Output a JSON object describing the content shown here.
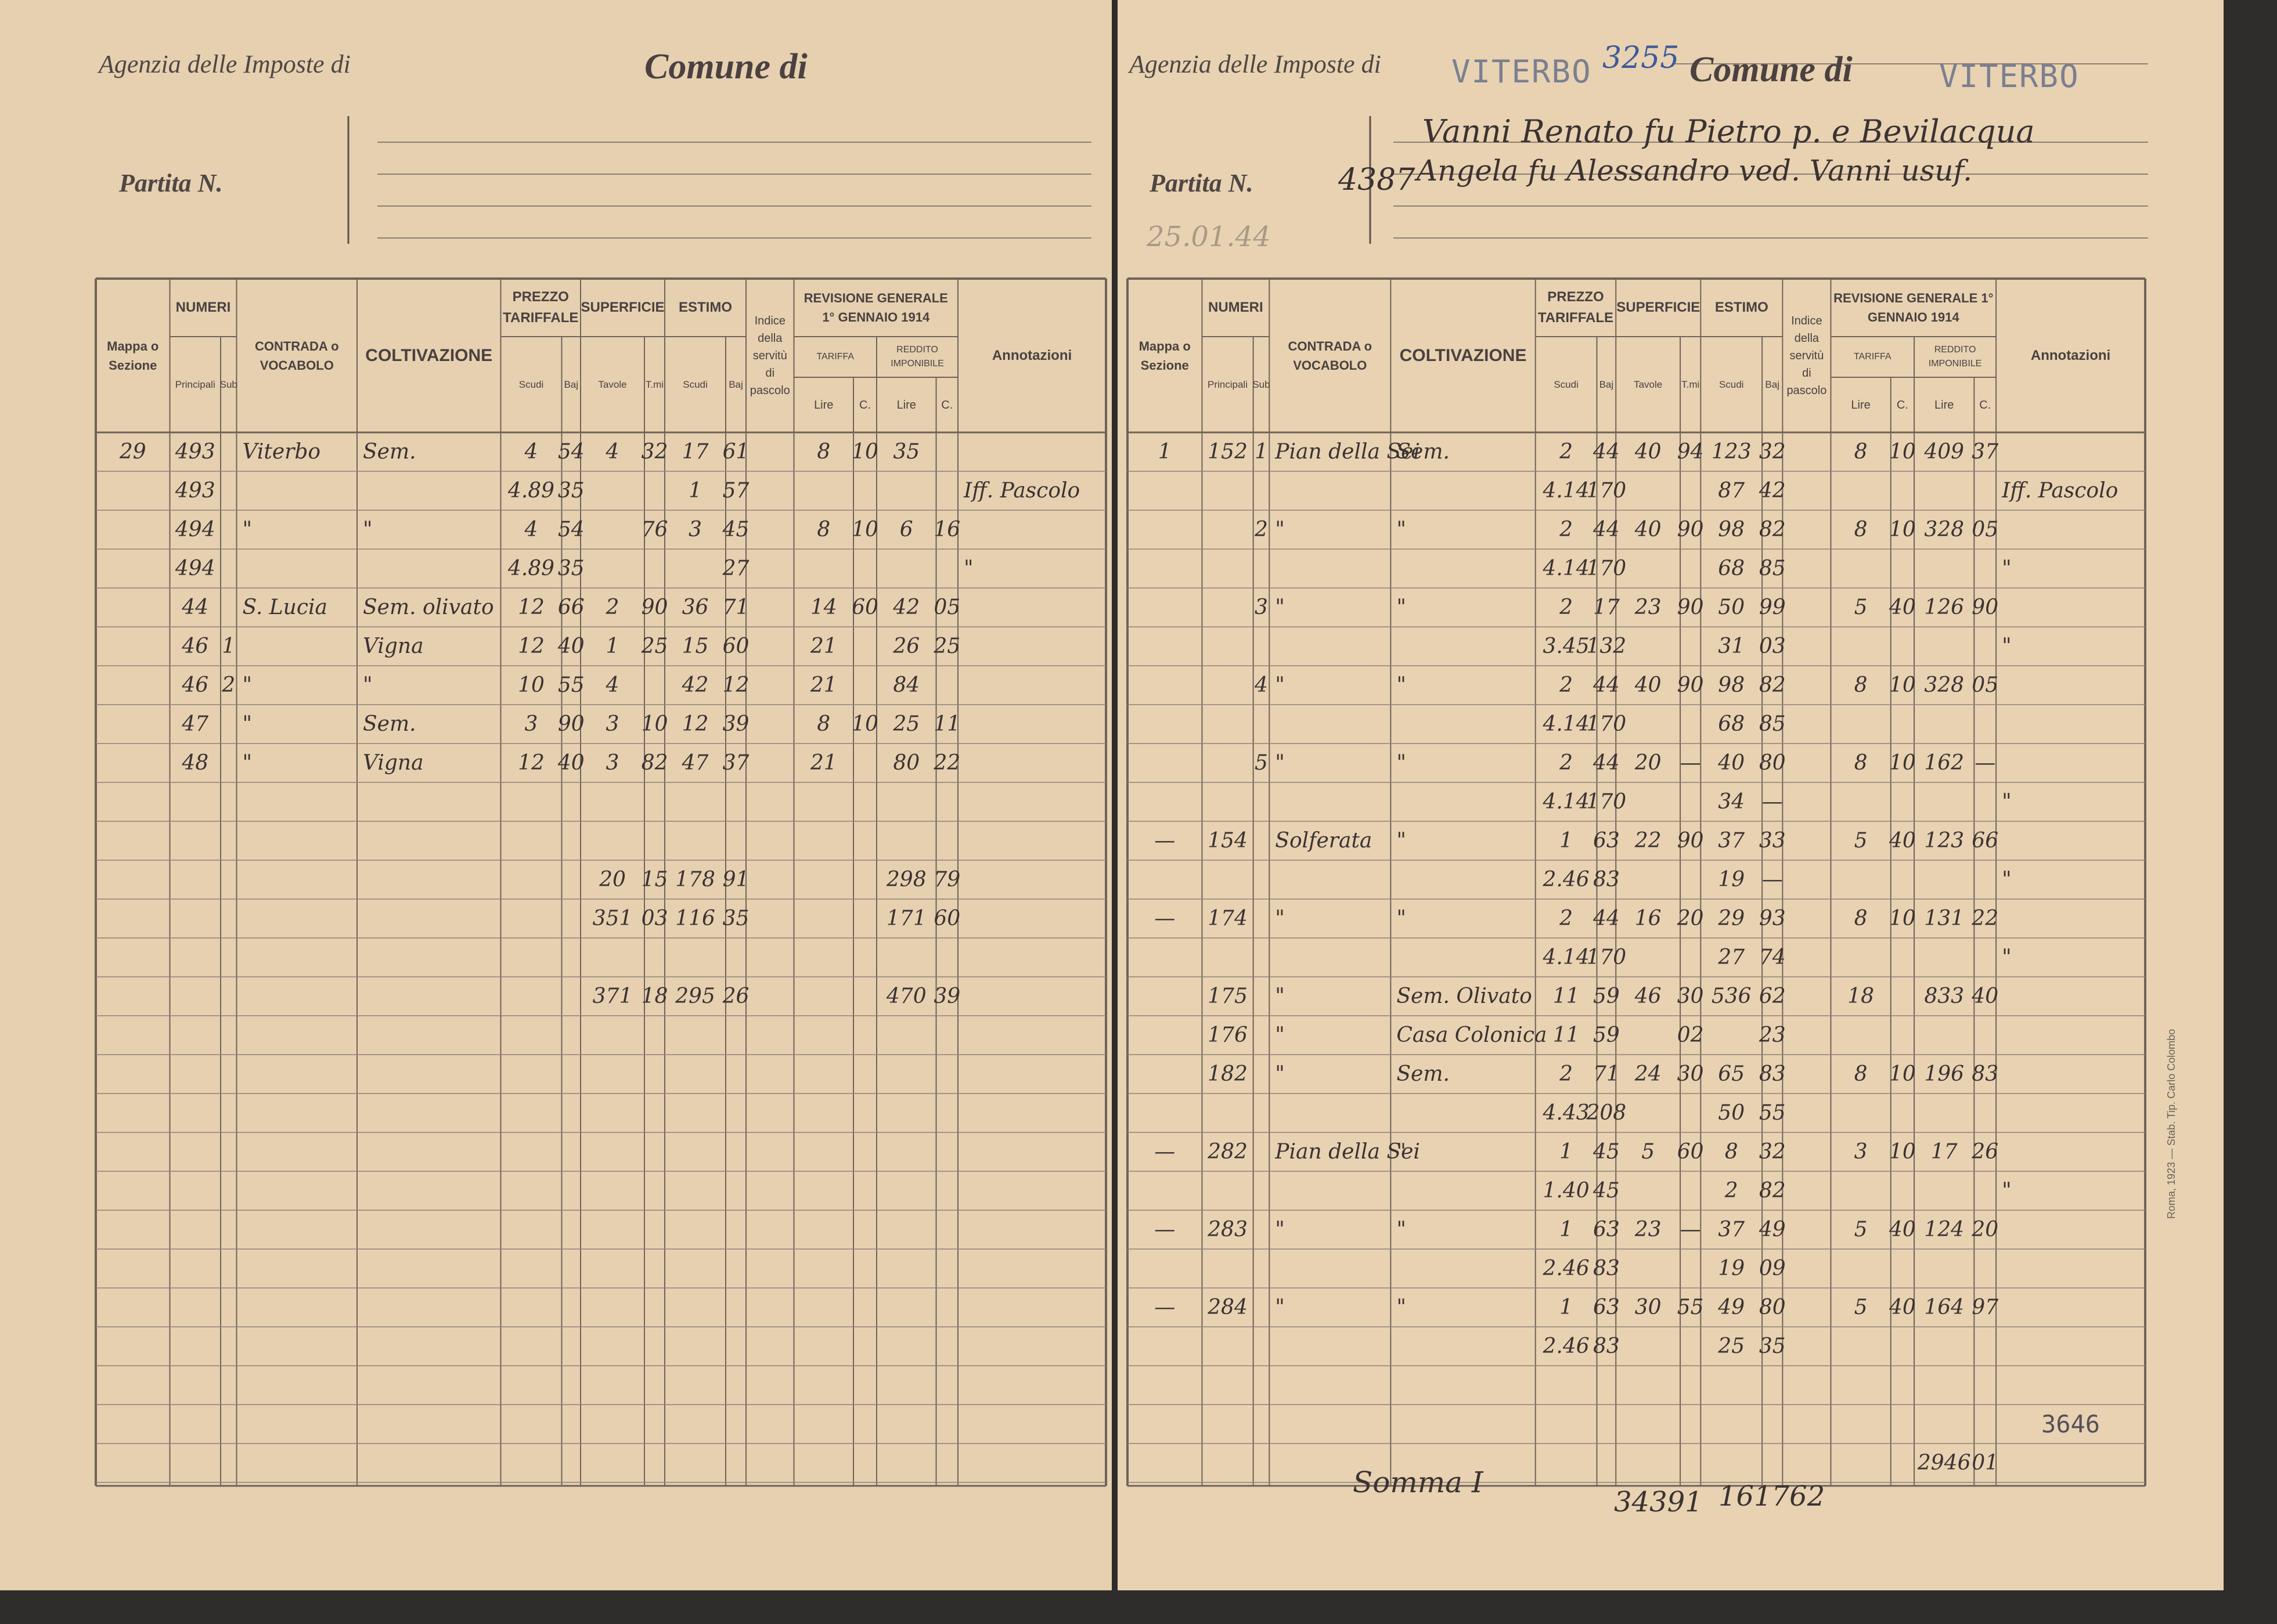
{
  "left_page": {
    "header": {
      "agency_label": "Agenzia delle Imposte di",
      "comune_label": "Comune di",
      "partita_label": "Partita N."
    },
    "table": {
      "headers": [
        "Mappa o Sezione",
        "NUMERI",
        "Principali",
        "Sub",
        "CONTRADA o VOCABOLO",
        "COLTIVAZIONE",
        "PREZZO TARIFFALE",
        "Scudi",
        "Baj",
        "SUPERFICIE",
        "Tavole",
        "T.mi",
        "ESTIMO",
        "Scudi",
        "Baj",
        "Indice della servitù di pascolo",
        "REVISIONE GENERALE 1° GENNAIO 1914",
        "TARIFFA",
        "REDDITO IMPONIBILE",
        "Lire",
        "C.",
        "Lire",
        "C.",
        "Annotazioni"
      ],
      "rows": [
        {
          "mappa": "29",
          "principali": "493",
          "contrada": "Viterbo",
          "coltivazione": "Sem.",
          "prezzo_scudi": "4",
          "prezzo_baj": "54",
          "superficie_tavole": "4",
          "superficie_tmi": "32",
          "estimo_scudi": "17",
          "estimo_baj": "61",
          "tariffa_lire": "8",
          "tariffa_c": "10",
          "reddito_lire": "35"
        },
        {
          "principali": "493",
          "prezzo_scudi": "4.89",
          "prezzo_baj": "35",
          "estimo_scudi": "1",
          "estimo_baj": "57",
          "annotazioni": "Iff. Pascolo"
        },
        {
          "principali": "494",
          "contrada": "\"",
          "coltivazione": "\"",
          "prezzo_scudi": "4",
          "prezzo_baj": "54",
          "superficie_tmi": "76",
          "estimo_scudi": "3",
          "estimo_baj": "45",
          "tariffa_lire": "8",
          "tariffa_c": "10",
          "reddito_lire": "6",
          "reddito_c": "16"
        },
        {
          "principali": "494",
          "prezzo_scudi": "4.89",
          "prezzo_baj": "35",
          "estimo_baj": "27",
          "annotazioni": "\""
        },
        {
          "principali": "44",
          "contrada": "S. Lucia",
          "coltivazione": "Sem. olivato",
          "prezzo_scudi": "12",
          "prezzo_baj": "66",
          "superficie_tavole": "2",
          "superficie_tmi": "90",
          "estimo_scudi": "36",
          "estimo_baj": "71",
          "tariffa_lire": "14",
          "tariffa_c": "60",
          "reddito_lire": "42",
          "reddito_c": "05"
        },
        {
          "principali": "46",
          "sub": "1",
          "coltivazione": "Vigna",
          "prezzo_scudi": "12",
          "prezzo_baj": "40",
          "superficie_tavole": "1",
          "superficie_tmi": "25",
          "estimo_scudi": "15",
          "estimo_baj": "60",
          "tariffa_lire": "21",
          "reddito_lire": "26",
          "reddito_c": "25"
        },
        {
          "principali": "46",
          "sub": "2",
          "contrada": "\"",
          "coltivazione": "\"",
          "prezzo_scudi": "10",
          "prezzo_baj": "55",
          "superficie_tavole": "4",
          "estimo_scudi": "42",
          "estimo_baj": "12",
          "tariffa_lire": "21",
          "reddito_lire": "84"
        },
        {
          "principali": "47",
          "contrada": "\"",
          "coltivazione": "Sem.",
          "prezzo_scudi": "3",
          "prezzo_baj": "90",
          "superficie_tavole": "3",
          "superficie_tmi": "10",
          "estimo_scudi": "12",
          "estimo_baj": "39",
          "tariffa_lire": "8",
          "tariffa_c": "10",
          "reddito_lire": "25",
          "reddito_c": "11"
        },
        {
          "principali": "48",
          "contrada": "\"",
          "coltivazione": "Vigna",
          "prezzo_scudi": "12",
          "prezzo_baj": "40",
          "superficie_tavole": "3",
          "superficie_tmi": "82",
          "estimo_scudi": "47",
          "estimo_baj": "37",
          "tariffa_lire": "21",
          "reddito_lire": "80",
          "reddito_c": "22"
        }
      ],
      "totals": [
        {
          "superficie_tavole": "20",
          "superficie_tmi": "15",
          "estimo_scudi": "178",
          "estimo_baj": "91",
          "reddito_lire": "298",
          "reddito_c": "79"
        },
        {
          "superficie_tavole": "351",
          "superficie_tmi": "03",
          "estimo_scudi": "116",
          "estimo_baj": "35",
          "reddito_lire": "171",
          "reddito_c": "60"
        },
        {
          "superficie_tavole": "371",
          "superficie_tmi": "18",
          "estimo_scudi": "295",
          "estimo_baj": "26",
          "reddito_lire": "470",
          "reddito_c": "39"
        }
      ]
    }
  },
  "right_page": {
    "header": {
      "agency_label": "Agenzia delle Imposte di",
      "agency_city": "VITERBO",
      "reference": "3255",
      "comune_label": "Comune di",
      "comune_name": "VITERBO",
      "partita_label": "Partita N.",
      "partita_number": "4387",
      "owner_lines": [
        "Vanni Renato fu Pietro p. e Bevilacqua",
        "Angela fu Alessandro ved. Vanni usuf."
      ],
      "date_stamp": "25.01.44"
    },
    "table": {
      "headers": [
        "Mappa o Sezione",
        "NUMERI",
        "Principali",
        "Sub",
        "CONTRADA o VOCABOLO",
        "COLTIVAZIONE",
        "PREZZO TARIFFALE",
        "Scudi",
        "Baj",
        "SUPERFICIE",
        "Tavole",
        "T.mi",
        "ESTIMO",
        "Scudi",
        "Baj",
        "Indice della servitù di pascolo",
        "REVISIONE GENERALE 1° GENNAIO 1914",
        "TARIFFA",
        "REDDITO IMPONIBILE",
        "Lire",
        "C.",
        "Lire",
        "C.",
        "Annotazioni"
      ],
      "rows": [
        {
          "mappa": "1",
          "principali": "152",
          "sub": "1",
          "contrada": "Pian della Sei",
          "coltivazione": "Sem.",
          "prezzo_scudi": "2",
          "prezzo_baj": "44",
          "superficie_tavole": "40",
          "superficie_tmi": "94",
          "estimo_scudi": "123",
          "estimo_baj": "32",
          "tariffa_lire": "8",
          "tariffa_c": "10",
          "reddito_lire": "409",
          "reddito_c": "37"
        },
        {
          "prezzo_scudi": "4.14",
          "prezzo_baj": "170",
          "estimo_scudi": "87",
          "estimo_baj": "42",
          "annotazioni": "Iff. Pascolo"
        },
        {
          "sub": "2",
          "contrada": "\"",
          "coltivazione": "\"",
          "prezzo_scudi": "2",
          "prezzo_baj": "44",
          "superficie_tavole": "40",
          "superficie_tmi": "90",
          "estimo_scudi": "98",
          "estimo_baj": "82",
          "tariffa_lire": "8",
          "tariffa_c": "10",
          "reddito_lire": "328",
          "reddito_c": "05"
        },
        {
          "prezzo_scudi": "4.14",
          "prezzo_baj": "170",
          "estimo_scudi": "68",
          "estimo_baj": "85",
          "annotazioni": "\""
        },
        {
          "sub": "3",
          "contrada": "\"",
          "coltivazione": "\"",
          "prezzo_scudi": "2",
          "prezzo_baj": "17",
          "superficie_tavole": "23",
          "superficie_tmi": "90",
          "estimo_scudi": "50",
          "estimo_baj": "99",
          "tariffa_lire": "5",
          "tariffa_c": "40",
          "reddito_lire": "126",
          "reddito_c": "90"
        },
        {
          "prezzo_scudi": "3.45",
          "prezzo_baj": "132",
          "estimo_scudi": "31",
          "estimo_baj": "03",
          "annotazioni": "\""
        },
        {
          "sub": "4",
          "contrada": "\"",
          "coltivazione": "\"",
          "prezzo_scudi": "2",
          "prezzo_baj": "44",
          "superficie_tavole": "40",
          "superficie_tmi": "90",
          "estimo_scudi": "98",
          "estimo_baj": "82",
          "tariffa_lire": "8",
          "tariffa_c": "10",
          "reddito_lire": "328",
          "reddito_c": "05"
        },
        {
          "prezzo_scudi": "4.14",
          "prezzo_baj": "170",
          "estimo_scudi": "68",
          "estimo_baj": "85"
        },
        {
          "sub": "5",
          "contrada": "\"",
          "coltivazione": "\"",
          "prezzo_scudi": "2",
          "prezzo_baj": "44",
          "superficie_tavole": "20",
          "superficie_tmi": "—",
          "estimo_scudi": "40",
          "estimo_baj": "80",
          "tariffa_lire": "8",
          "tariffa_c": "10",
          "reddito_lire": "162",
          "reddito_c": "—"
        },
        {
          "prezzo_scudi": "4.14",
          "prezzo_baj": "170",
          "estimo_scudi": "34",
          "estimo_baj": "—",
          "annotazioni": "\""
        },
        {
          "mappa": "—",
          "principali": "154",
          "contrada": "Solferata",
          "coltivazione": "\"",
          "prezzo_scudi": "1",
          "prezzo_baj": "63",
          "superficie_tavole": "22",
          "superficie_tmi": "90",
          "estimo_scudi": "37",
          "estimo_baj": "33",
          "tariffa_lire": "5",
          "tariffa_c": "40",
          "reddito_lire": "123",
          "reddito_c": "66"
        },
        {
          "prezzo_scudi": "2.46",
          "prezzo_baj": "83",
          "estimo_scudi": "19",
          "estimo_baj": "—",
          "annotazioni": "\""
        },
        {
          "mappa": "—",
          "principali": "174",
          "contrada": "\"",
          "coltivazione": "\"",
          "prezzo_scudi": "2",
          "prezzo_baj": "44",
          "superficie_tavole": "16",
          "superficie_tmi": "20",
          "estimo_scudi": "29",
          "estimo_baj": "93",
          "tariffa_lire": "8",
          "tariffa_c": "10",
          "reddito_lire": "131",
          "reddito_c": "22"
        },
        {
          "prezzo_scudi": "4.14",
          "prezzo_baj": "170",
          "estimo_scudi": "27",
          "estimo_baj": "74",
          "annotazioni": "\""
        },
        {
          "principali": "175",
          "contrada": "\"",
          "coltivazione": "Sem. Olivato",
          "prezzo_scudi": "11",
          "prezzo_baj": "59",
          "superficie_tavole": "46",
          "superficie_tmi": "30",
          "estimo_scudi": "536",
          "estimo_baj": "62",
          "tariffa_lire": "18",
          "reddito_lire": "833",
          "reddito_c": "40"
        },
        {
          "principali": "176",
          "contrada": "\"",
          "coltivazione": "Casa Colonica",
          "prezzo_scudi": "11",
          "prezzo_baj": "59",
          "superficie_tmi": "02",
          "estimo_baj": "23"
        },
        {
          "principali": "182",
          "contrada": "\"",
          "coltivazione": "Sem.",
          "prezzo_scudi": "2",
          "prezzo_baj": "71",
          "superficie_tavole": "24",
          "superficie_tmi": "30",
          "estimo_scudi": "65",
          "estimo_baj": "83",
          "tariffa_lire": "8",
          "tariffa_c": "10",
          "reddito_lire": "196",
          "reddito_c": "83"
        },
        {
          "prezzo_scudi": "4.43",
          "prezzo_baj": "208",
          "estimo_scudi": "50",
          "estimo_baj": "55"
        },
        {
          "mappa": "—",
          "principali": "282",
          "contrada": "Pian della Sei",
          "coltivazione": "\"",
          "prezzo_scudi": "1",
          "prezzo_baj": "45",
          "superficie_tavole": "5",
          "superficie_tmi": "60",
          "estimo_scudi": "8",
          "estimo_baj": "32",
          "tariffa_lire": "3",
          "tariffa_c": "10",
          "reddito_lire": "17",
          "reddito_c": "26"
        },
        {
          "prezzo_scudi": "1.40",
          "prezzo_baj": "45",
          "estimo_scudi": "2",
          "estimo_baj": "82",
          "annotazioni": "\""
        },
        {
          "mappa": "—",
          "principali": "283",
          "contrada": "\"",
          "coltivazione": "\"",
          "prezzo_scudi": "1",
          "prezzo_baj": "63",
          "superficie_tavole": "23",
          "superficie_tmi": "—",
          "estimo_scudi": "37",
          "estimo_baj": "49",
          "tariffa_lire": "5",
          "tariffa_c": "40",
          "reddito_lire": "124",
          "reddito_c": "20"
        },
        {
          "prezzo_scudi": "2.46",
          "prezzo_baj": "83",
          "estimo_scudi": "19",
          "estimo_baj": "09"
        },
        {
          "mappa": "—",
          "principali": "284",
          "contrada": "\"",
          "coltivazione": "\"",
          "prezzo_scudi": "1",
          "prezzo_baj": "63",
          "superficie_tavole": "30",
          "superficie_tmi": "55",
          "estimo_scudi": "49",
          "estimo_baj": "80",
          "tariffa_lire": "5",
          "tariffa_c": "40",
          "reddito_lire": "164",
          "reddito_c": "97"
        },
        {
          "prezzo_scudi": "2.46",
          "prezzo_baj": "83",
          "estimo_scudi": "25",
          "estimo_baj": "35"
        }
      ],
      "totals": [
        {
          "reddito_lire": "2946",
          "reddito_c": "01"
        }
      ],
      "stamp_number": "3646"
    },
    "footer": {
      "sum_label": "Somma I",
      "sum_values": [
        "34391",
        "161762"
      ]
    },
    "printer_note": "Roma, 1923 — Stab. Tip. Carlo Colombo"
  }
}
